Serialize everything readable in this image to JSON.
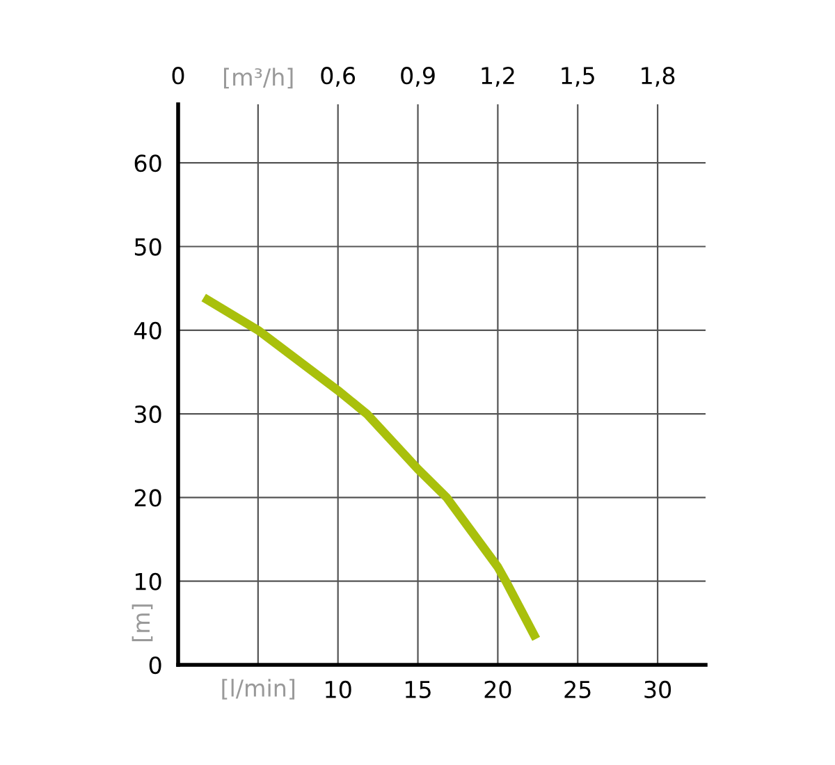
{
  "chart_data": {
    "type": "line",
    "xlabel": "[l/min]",
    "x2label": "[m³/h]",
    "ylabel": "[m]",
    "series": [
      {
        "color": "#a9c00c",
        "x": [
          1.6,
          5,
          10,
          11.8,
          15,
          16.8,
          20,
          20.5,
          22.4
        ],
        "values": [
          43.9,
          40,
          32.8,
          30,
          23.4,
          20,
          11.7,
          10,
          3.1
        ]
      }
    ],
    "xlim": [
      0,
      33
    ],
    "xticks": [
      {
        "value": 5,
        "label": null
      },
      10,
      15,
      20,
      25,
      30
    ],
    "x2lim": [
      0,
      1.98
    ],
    "x2ticks": [
      0,
      {
        "value": 0.3,
        "label": null
      },
      {
        "value": 0.6,
        "label": "0,6"
      },
      {
        "value": 0.9,
        "label": "0,9"
      },
      {
        "value": 1.2,
        "label": "1,2"
      },
      {
        "value": 1.5,
        "label": "1,5"
      },
      {
        "value": 1.8,
        "label": "1,8"
      }
    ],
    "ylim": [
      0,
      67
    ],
    "yticks": [
      0,
      10,
      20,
      30,
      40,
      50,
      60
    ],
    "grid": true,
    "marker": "none",
    "line_style": "solid",
    "legend": false
  }
}
